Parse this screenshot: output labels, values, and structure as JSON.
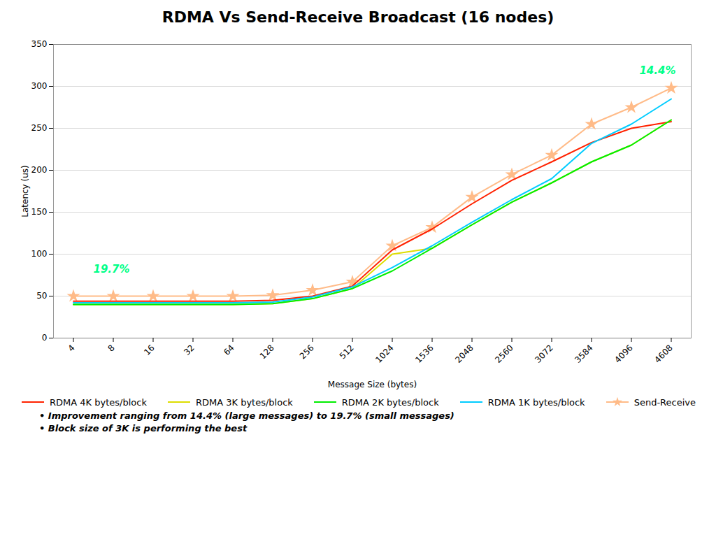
{
  "chart_data": {
    "type": "line",
    "title": "RDMA Vs Send-Receive Broadcast (16 nodes)",
    "xlabel": "Message Size (bytes)",
    "ylabel": "Latency (us)",
    "categories": [
      "4",
      "8",
      "16",
      "32",
      "64",
      "128",
      "256",
      "512",
      "1024",
      "1536",
      "2048",
      "2560",
      "3072",
      "3584",
      "4096",
      "4608"
    ],
    "series": [
      {
        "name": "RDMA 4K bytes/block",
        "color": "#ff2200",
        "marker": "plus",
        "values": [
          44,
          44,
          44,
          44,
          44,
          45,
          50,
          62,
          105,
          130,
          160,
          188,
          210,
          233,
          250,
          258
        ]
      },
      {
        "name": "RDMA 3K bytes/block",
        "color": "#dddd00",
        "marker": "plus",
        "values": [
          40,
          40,
          40,
          40,
          40,
          41,
          47,
          59,
          100,
          107,
          135,
          162,
          185,
          210,
          230,
          260
        ]
      },
      {
        "name": "RDMA 2K bytes/block",
        "color": "#00ee00",
        "marker": "plus",
        "values": [
          40,
          40,
          40,
          40,
          40,
          41,
          47,
          59,
          80,
          107,
          135,
          162,
          185,
          210,
          230,
          260
        ]
      },
      {
        "name": "RDMA 1K bytes/block",
        "color": "#00ccff",
        "marker": "plus",
        "values": [
          42,
          42,
          42,
          42,
          42,
          43,
          49,
          61,
          84,
          110,
          138,
          165,
          190,
          232,
          255,
          285
        ]
      },
      {
        "name": "Send-Receive",
        "color": "#ffbb88",
        "marker": "star",
        "values": [
          50,
          50,
          50,
          50,
          50,
          51,
          57,
          67,
          110,
          132,
          168,
          195,
          218,
          255,
          275,
          298
        ]
      }
    ],
    "ylim": [
      0,
      350
    ],
    "yticks": [
      0,
      50,
      100,
      150,
      200,
      250,
      300,
      350
    ],
    "grid": true,
    "legend": "bottom",
    "annotations": [
      {
        "text": "19.7%",
        "x": 0.5,
        "y": 78,
        "color": "#00ff88"
      },
      {
        "text": "14.4%",
        "x": 14.2,
        "y": 315,
        "color": "#00ff88"
      }
    ],
    "notes": [
      "• Improvement ranging from 14.4% (large messages) to 19.7% (small messages)",
      "• Block size of 3K is performing the best"
    ]
  }
}
